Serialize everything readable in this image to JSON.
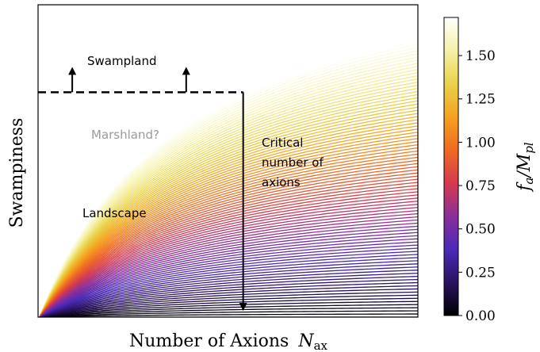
{
  "chart_data": {
    "type": "line",
    "title": "",
    "xlabel": "Number of Axions",
    "xlabel_symbol": "N",
    "xlabel_symbol_sub": "ax",
    "ylabel": "Swampiness",
    "x_ticks_shown": false,
    "y_ticks_shown": false,
    "xlim": [
      0,
      1
    ],
    "ylim": [
      0,
      1
    ],
    "grid": false,
    "legend": "none",
    "curves": {
      "count": 90,
      "model": "y = a * x / (x + 0.4)",
      "a_range": [
        0.0,
        1.25
      ],
      "colored_by": "f_a/M_pl"
    },
    "threshold": {
      "y": 0.72,
      "x_end": 0.54,
      "style": "dashed",
      "up_arrows_x": [
        0.09,
        0.39
      ]
    },
    "critical_line": {
      "x": 0.54,
      "from_y": 0.72,
      "to_y": 0.02
    },
    "annotations": {
      "swampland": "Swampland",
      "marshland": "Marshland?",
      "landscape": "Landscape",
      "critical": [
        "Critical",
        "number of",
        "axions"
      ]
    },
    "colorbar": {
      "label": "f_a/M_pl",
      "label_main": "f",
      "label_sub": "a",
      "label_sep": "/M",
      "label_sub2": "pl",
      "min": 0.0,
      "max": 1.72,
      "ticks": [
        "0.00",
        "0.25",
        "0.50",
        "0.75",
        "1.00",
        "1.25",
        "1.50"
      ],
      "tick_values": [
        0.0,
        0.25,
        0.5,
        0.75,
        1.0,
        1.25,
        1.5
      ],
      "colormap": "CMRmap-like",
      "stops": [
        "#000000",
        "#2a1260",
        "#4b2ab8",
        "#8a2e9a",
        "#d63a4f",
        "#ef6a22",
        "#f5a21e",
        "#e9d24a",
        "#f6f1a6",
        "#ffffff"
      ]
    },
    "colors": {
      "axes": "#000000",
      "threshold": "#000000",
      "marshland_text": "#9a9a9a"
    }
  }
}
